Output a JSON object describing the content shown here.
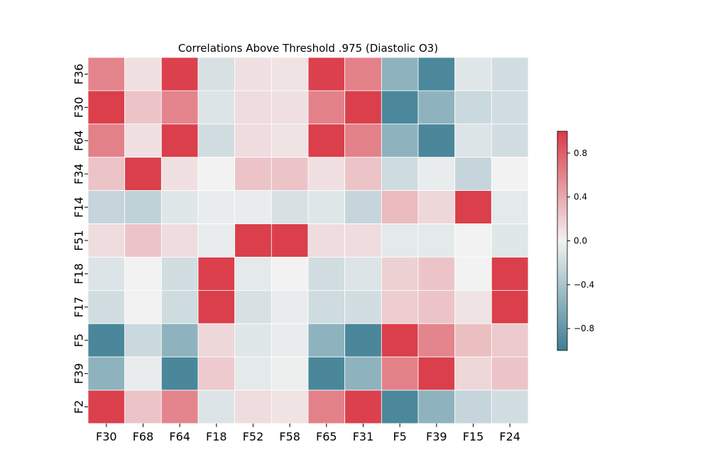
{
  "chart_data": {
    "type": "heatmap",
    "title": "Correlations Above Threshold .975 (Diastolic O3)",
    "x_labels": [
      "F30",
      "F68",
      "F64",
      "F18",
      "F52",
      "F58",
      "F65",
      "F31",
      "F5",
      "F39",
      "F15",
      "F24"
    ],
    "y_labels": [
      "F36",
      "F30",
      "F64",
      "F34",
      "F14",
      "F51",
      "F18",
      "F17",
      "F5",
      "F39",
      "F2"
    ],
    "values": [
      [
        0.6,
        0.1,
        0.97,
        -0.15,
        0.1,
        0.08,
        0.97,
        0.62,
        -0.55,
        -0.92,
        -0.1,
        -0.18
      ],
      [
        0.98,
        0.25,
        0.6,
        -0.12,
        0.12,
        0.1,
        0.62,
        0.98,
        -0.92,
        -0.55,
        -0.22,
        -0.18
      ],
      [
        0.62,
        0.1,
        0.98,
        -0.18,
        0.12,
        0.08,
        0.98,
        0.62,
        -0.55,
        -0.93,
        -0.12,
        -0.18
      ],
      [
        0.25,
        0.98,
        0.1,
        0.0,
        0.25,
        0.25,
        0.1,
        0.25,
        -0.2,
        -0.05,
        -0.25,
        0.0
      ],
      [
        -0.25,
        -0.28,
        -0.1,
        -0.05,
        -0.05,
        -0.15,
        -0.1,
        -0.25,
        0.3,
        0.15,
        0.98,
        -0.08
      ],
      [
        0.12,
        0.25,
        0.12,
        -0.05,
        0.98,
        0.98,
        0.12,
        0.12,
        -0.08,
        -0.08,
        0.0,
        -0.1
      ],
      [
        -0.12,
        0.0,
        -0.18,
        0.98,
        -0.08,
        0.0,
        -0.18,
        -0.12,
        0.18,
        0.25,
        0.0,
        0.98
      ],
      [
        -0.18,
        0.0,
        -0.2,
        0.98,
        -0.15,
        -0.05,
        -0.2,
        -0.18,
        0.2,
        0.25,
        0.08,
        0.98
      ],
      [
        -0.93,
        -0.22,
        -0.55,
        0.15,
        -0.1,
        -0.05,
        -0.55,
        -0.93,
        0.98,
        0.6,
        0.28,
        0.22
      ],
      [
        -0.55,
        -0.05,
        -0.93,
        0.22,
        -0.08,
        -0.03,
        -0.93,
        -0.55,
        0.62,
        0.98,
        0.15,
        0.25
      ],
      [
        0.97,
        0.25,
        0.6,
        -0.12,
        0.12,
        0.08,
        0.62,
        0.97,
        -0.92,
        -0.55,
        -0.25,
        -0.18
      ]
    ],
    "colorbar": {
      "min": -1,
      "max": 1,
      "ticks": [
        "0.8",
        "0.4",
        "0.0",
        "−0.4",
        "−0.8"
      ],
      "tick_values": [
        0.8,
        0.4,
        0.0,
        -0.4,
        -0.8
      ]
    },
    "colormap": {
      "negative": "#3d7f94",
      "center": "#f2f2f2",
      "positive": "#da3b48"
    },
    "cell_border_color": "#ffffff"
  }
}
